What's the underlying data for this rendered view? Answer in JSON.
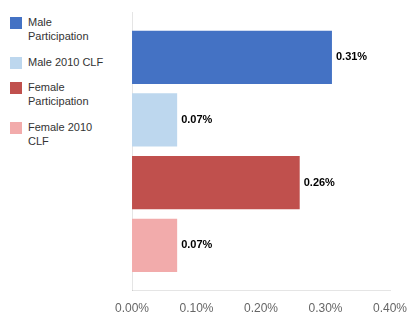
{
  "chart_data": {
    "type": "bar",
    "orientation": "horizontal",
    "categories": [
      null
    ],
    "series": [
      {
        "name": "Male\nParticipation",
        "color": "#4472C4",
        "values": [
          0.31
        ],
        "value_labels": [
          "0.31%"
        ]
      },
      {
        "name": "Male 2010 CLF",
        "color": "#BDD7EE",
        "values": [
          0.07
        ],
        "value_labels": [
          "0.07%"
        ]
      },
      {
        "name": "Female\nParticipation",
        "color": "#C0504D",
        "values": [
          0.26
        ],
        "value_labels": [
          "0.26%"
        ]
      },
      {
        "name": "Female 2010\nCLF",
        "color": "#F2ABAB",
        "values": [
          0.07
        ],
        "value_labels": [
          "0.07%"
        ]
      }
    ],
    "xlim": [
      0,
      0.4
    ],
    "xticks": [
      {
        "value": 0.0,
        "label": "0.00%"
      },
      {
        "value": 0.1,
        "label": "0.10%"
      },
      {
        "value": 0.2,
        "label": "0.20%"
      },
      {
        "value": 0.3,
        "label": "0.30%"
      },
      {
        "value": 0.4,
        "label": "0.40%"
      }
    ],
    "tick_labels": "x",
    "data_labels": true,
    "grid": false,
    "legend": "left"
  }
}
